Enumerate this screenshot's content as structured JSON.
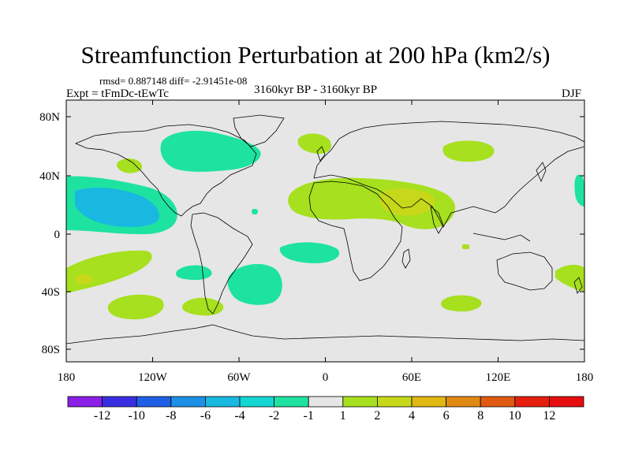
{
  "title": "Streamfunction Perturbation at 200 hPa (km2/s)",
  "stats": "rmsd= 0.887148 diff= -2.91451e-08",
  "expt": "Expt = tFmDc-tEwTc",
  "period": "3160kyr BP - 3160kyr BP",
  "season": "DJF",
  "lat_ticks": [
    "80N",
    "40N",
    "0",
    "40S",
    "80S"
  ],
  "lon_ticks": [
    "180",
    "120W",
    "60W",
    "0",
    "60E",
    "120E",
    "180"
  ],
  "colorbar": {
    "labels": [
      "-12",
      "-10",
      "-8",
      "-6",
      "-4",
      "-2",
      "-1",
      "1",
      "2",
      "4",
      "6",
      "8",
      "10",
      "12"
    ],
    "colors": [
      "#8a1fe6",
      "#3a2fe0",
      "#1f5fe6",
      "#1c8fe6",
      "#19b8e0",
      "#14d6d2",
      "#1ee3a0",
      "#e6e6e6",
      "#a6e01e",
      "#c7d81a",
      "#e0b814",
      "#e08a14",
      "#e05a12",
      "#e61e0e",
      "#e60e0e"
    ]
  },
  "background_color": "#e6e6e6"
}
